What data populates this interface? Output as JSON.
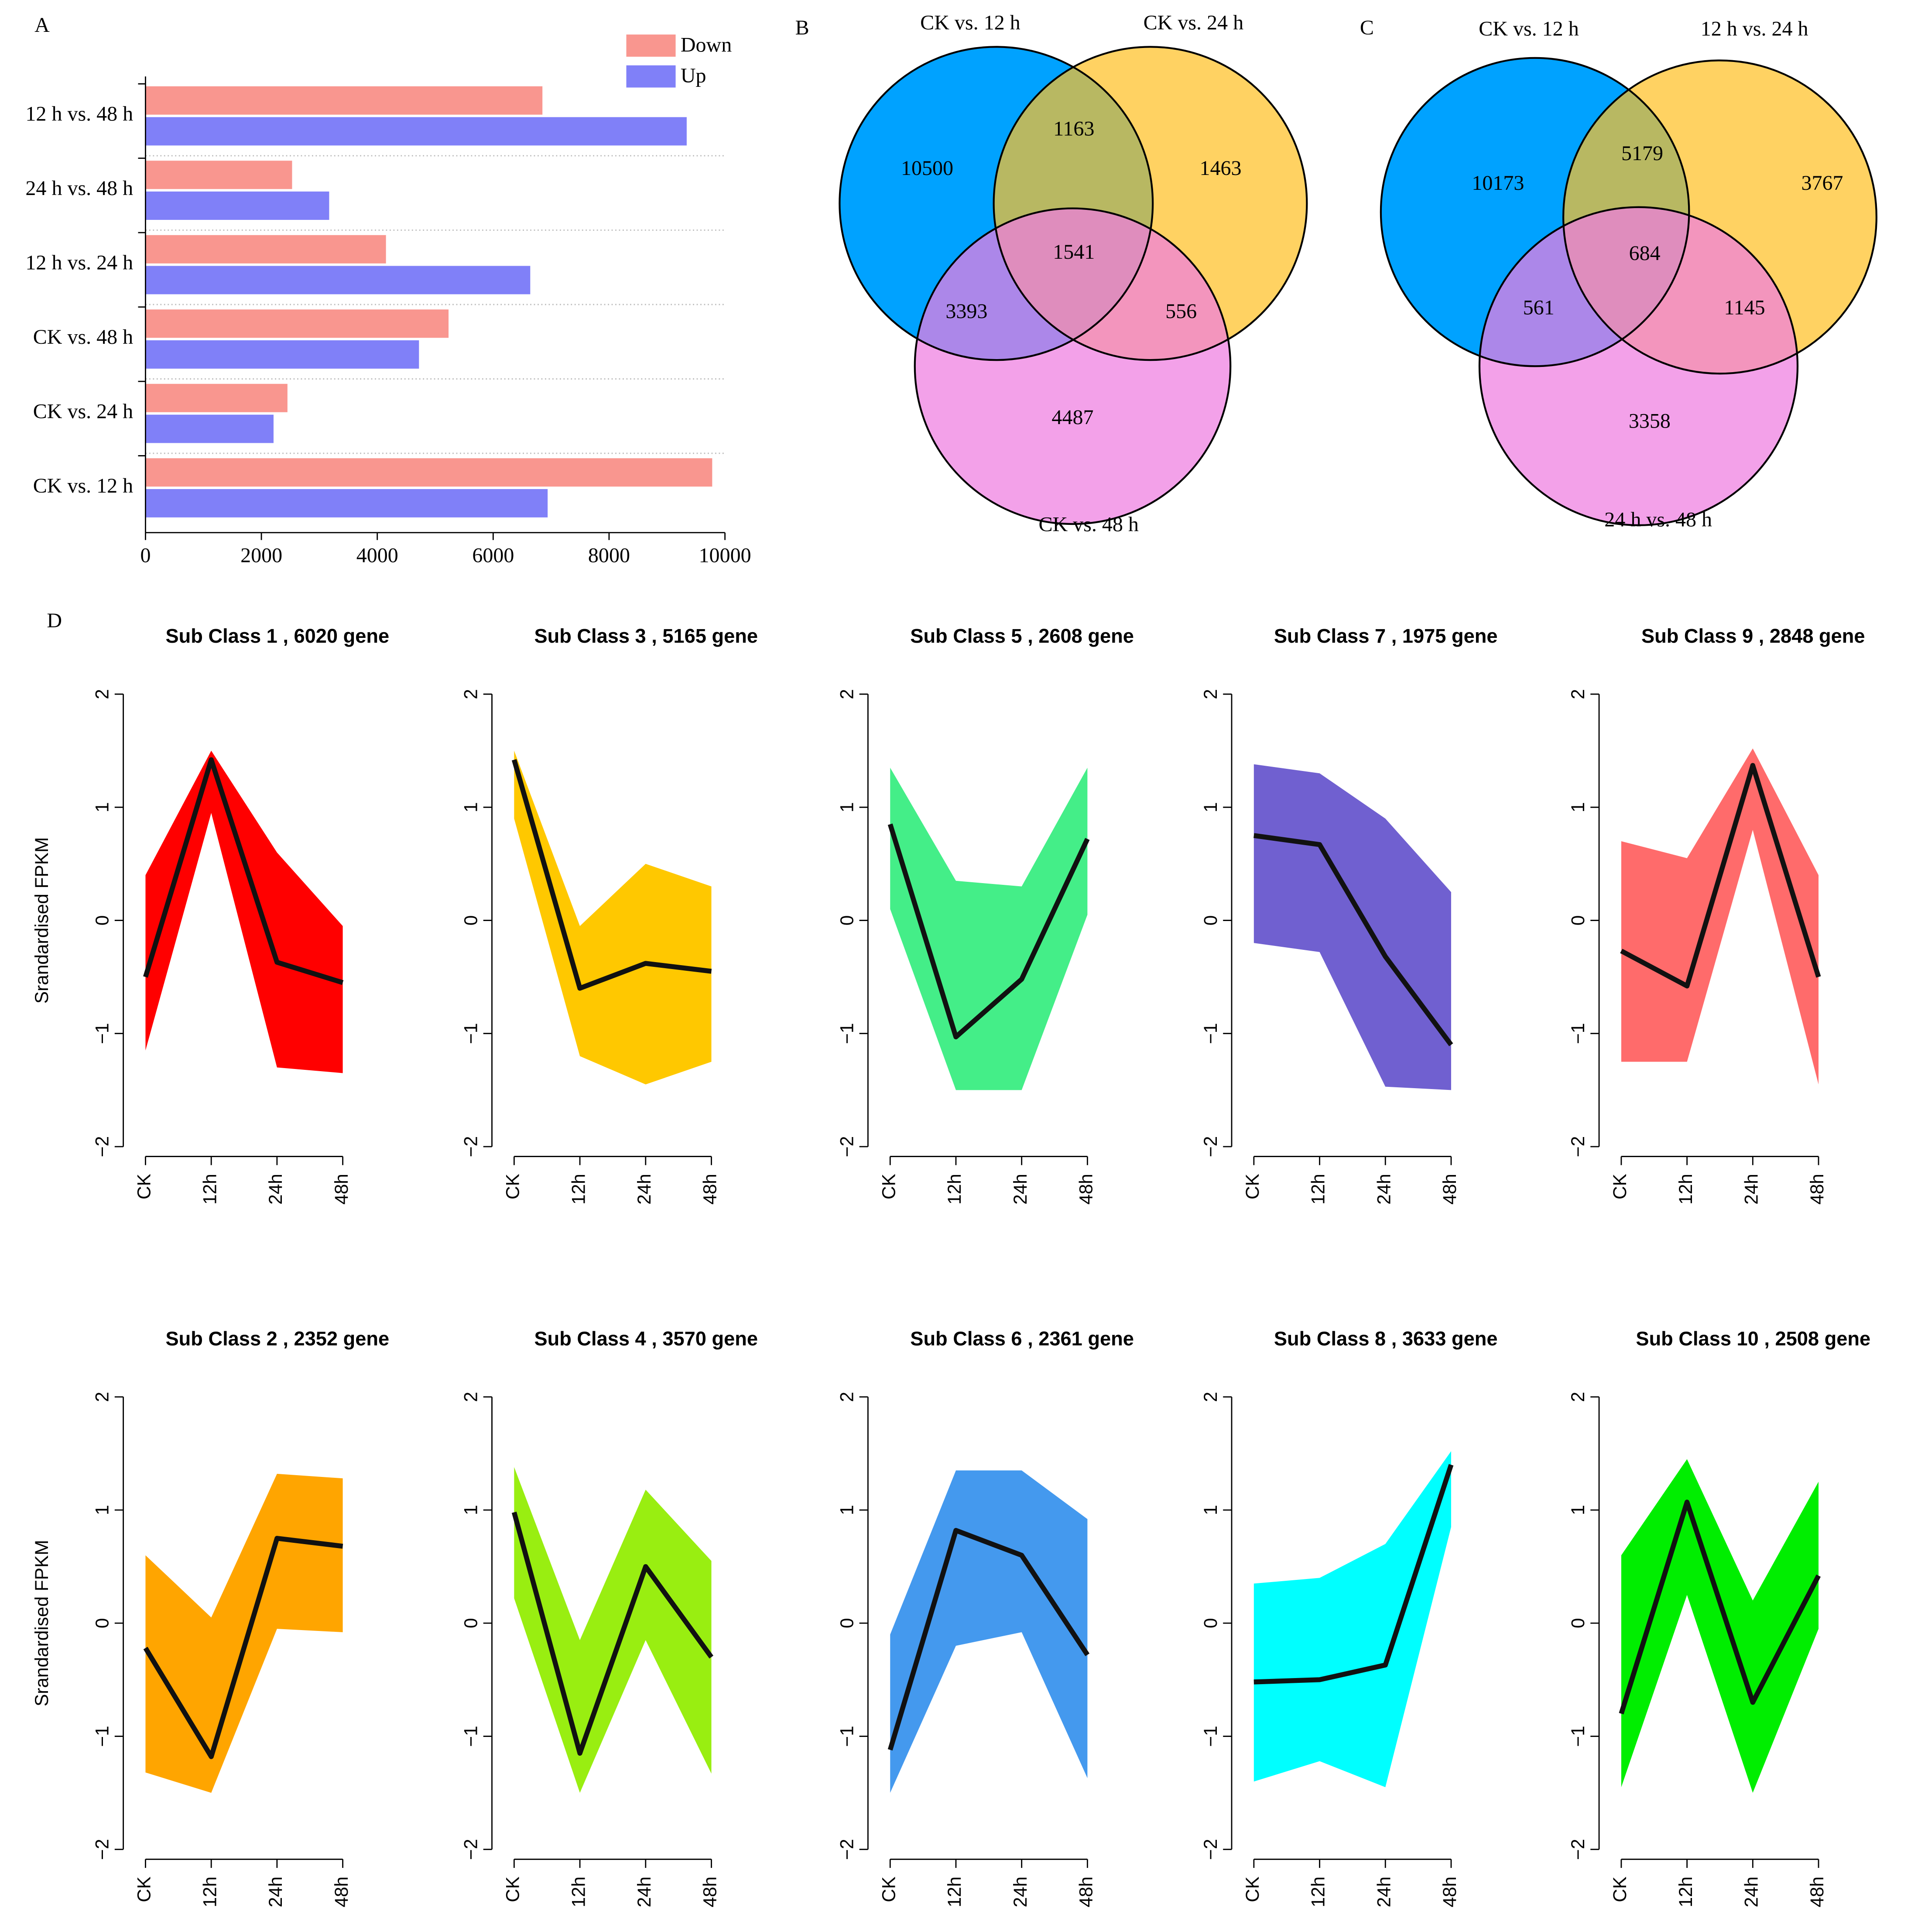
{
  "chart_data": [
    {
      "type": "hbar",
      "panel": "A",
      "categories": [
        "12 h vs. 48 h",
        "24 h vs. 48 h",
        "12 h vs. 24 h",
        "CK vs. 48 h",
        "CK vs. 24 h",
        "CK vs. 12 h"
      ],
      "series": [
        {
          "name": "Down",
          "color": "#f9968f",
          "values": [
            6850,
            2530,
            4150,
            5230,
            2450,
            9780
          ]
        },
        {
          "name": "Up",
          "color": "#8080f8",
          "values": [
            9340,
            3170,
            6640,
            4720,
            2210,
            6940
          ]
        }
      ],
      "xlim": [
        0,
        10000
      ],
      "xticks": [
        0,
        2000,
        4000,
        6000,
        8000,
        10000
      ]
    },
    {
      "type": "venn",
      "panel": "B",
      "sets": [
        {
          "name": "CK vs. 12 h",
          "color": "#00a2ff"
        },
        {
          "name": "CK vs. 24 h",
          "color": "#ffc125"
        },
        {
          "name": "CK vs. 48 h",
          "color": "#ee7de0"
        }
      ],
      "regions": [
        10500,
        1163,
        1463,
        1541,
        3393,
        556,
        4487
      ]
    },
    {
      "type": "venn",
      "panel": "C",
      "sets": [
        {
          "name": "CK vs. 12 h",
          "color": "#00a2ff"
        },
        {
          "name": "12 h vs. 24 h",
          "color": "#ffc125"
        },
        {
          "name": "24 h vs. 48 h",
          "color": "#ee7de0"
        }
      ],
      "regions": [
        10173,
        5179,
        3767,
        684,
        561,
        1145,
        3358
      ]
    },
    {
      "type": "band",
      "panel": "D",
      "title": "Sub Class 1 , 6020 gene",
      "ylabel": "Srandardised FPKM",
      "color": "#ff0000",
      "categories": [
        "CK",
        "12h",
        "24h",
        "48h"
      ],
      "values": [
        -0.5,
        1.42,
        -0.37,
        -0.55
      ],
      "upper": [
        0.4,
        1.5,
        0.6,
        -0.05
      ],
      "lower": [
        -1.15,
        0.95,
        -1.3,
        -1.35
      ],
      "ylim": [
        -2,
        2
      ],
      "yticks": [
        {
          "value": -2,
          "label": "−2"
        },
        {
          "value": -1,
          "label": "−1"
        },
        0,
        1,
        2
      ]
    },
    {
      "type": "band",
      "title": "Sub Class 3 , 5165 gene",
      "color": "#ffc800",
      "categories": [
        "CK",
        "12h",
        "24h",
        "48h"
      ],
      "values": [
        1.42,
        -0.6,
        -0.38,
        -0.45
      ],
      "upper": [
        1.5,
        -0.05,
        0.5,
        0.3
      ],
      "lower": [
        0.9,
        -1.2,
        -1.45,
        -1.25
      ],
      "ylim": [
        -2,
        2
      ],
      "yticks": [
        {
          "value": -2,
          "label": "−2"
        },
        {
          "value": -1,
          "label": "−1"
        },
        0,
        1,
        2
      ]
    },
    {
      "type": "band",
      "title": "Sub Class 5 , 2608 gene",
      "color": "#44ee88",
      "categories": [
        "CK",
        "12h",
        "24h",
        "48h"
      ],
      "values": [
        0.85,
        -1.03,
        -0.52,
        0.72
      ],
      "upper": [
        1.35,
        0.35,
        0.3,
        1.35
      ],
      "lower": [
        0.1,
        -1.5,
        -1.5,
        0.05
      ],
      "ylim": [
        -2,
        2
      ],
      "yticks": [
        {
          "value": -2,
          "label": "−2"
        },
        {
          "value": -1,
          "label": "−1"
        },
        0,
        1,
        2
      ]
    },
    {
      "type": "band",
      "title": "Sub Class 7 , 1975 gene",
      "color": "#7060d0",
      "categories": [
        "CK",
        "12h",
        "24h",
        "48h"
      ],
      "values": [
        0.75,
        0.67,
        -0.32,
        -1.1
      ],
      "upper": [
        1.38,
        1.3,
        0.9,
        0.25
      ],
      "lower": [
        -0.2,
        -0.28,
        -1.47,
        -1.5
      ],
      "ylim": [
        -2,
        2
      ],
      "yticks": [
        {
          "value": -2,
          "label": "−2"
        },
        {
          "value": -1,
          "label": "−1"
        },
        0,
        1,
        2
      ]
    },
    {
      "type": "band",
      "title": "Sub Class 9 , 2848 gene",
      "color": "#ff6b6b",
      "categories": [
        "CK",
        "12h",
        "24h",
        "48h"
      ],
      "values": [
        -0.27,
        -0.58,
        1.37,
        -0.5
      ],
      "upper": [
        0.7,
        0.55,
        1.52,
        0.4
      ],
      "lower": [
        -1.25,
        -1.25,
        0.8,
        -1.45
      ],
      "ylim": [
        -2,
        2
      ],
      "yticks": [
        {
          "value": -2,
          "label": "−2"
        },
        {
          "value": -1,
          "label": "−1"
        },
        0,
        1,
        2
      ]
    },
    {
      "type": "band",
      "title": "Sub Class 2 , 2352 gene",
      "ylabel": "Srandardised FPKM",
      "color": "#ffa500",
      "categories": [
        "CK",
        "12h",
        "24h",
        "48h"
      ],
      "values": [
        -0.22,
        -1.18,
        0.75,
        0.68
      ],
      "upper": [
        0.6,
        0.05,
        1.32,
        1.28
      ],
      "lower": [
        -1.32,
        -1.5,
        -0.05,
        -0.08
      ],
      "ylim": [
        -2,
        2
      ],
      "yticks": [
        {
          "value": -2,
          "label": "−2"
        },
        {
          "value": -1,
          "label": "−1"
        },
        0,
        1,
        2
      ]
    },
    {
      "type": "band",
      "title": "Sub Class 4 , 3570 gene",
      "color": "#99ee11",
      "categories": [
        "CK",
        "12h",
        "24h",
        "48h"
      ],
      "values": [
        0.98,
        -1.15,
        0.5,
        -0.3
      ],
      "upper": [
        1.38,
        -0.15,
        1.18,
        0.55
      ],
      "lower": [
        0.22,
        -1.5,
        -0.15,
        -1.33
      ],
      "ylim": [
        -2,
        2
      ],
      "yticks": [
        {
          "value": -2,
          "label": "−2"
        },
        {
          "value": -1,
          "label": "−1"
        },
        0,
        1,
        2
      ]
    },
    {
      "type": "band",
      "title": "Sub Class 6 , 2361 gene",
      "color": "#4499ee",
      "categories": [
        "CK",
        "12h",
        "24h",
        "48h"
      ],
      "values": [
        -1.12,
        0.82,
        0.6,
        -0.28
      ],
      "upper": [
        -0.1,
        1.35,
        1.35,
        0.92
      ],
      "lower": [
        -1.5,
        -0.2,
        -0.08,
        -1.37
      ],
      "ylim": [
        -2,
        2
      ],
      "yticks": [
        {
          "value": -2,
          "label": "−2"
        },
        {
          "value": -1,
          "label": "−1"
        },
        0,
        1,
        2
      ]
    },
    {
      "type": "band",
      "title": "Sub Class 8 , 3633 gene",
      "color": "#00ffff",
      "categories": [
        "CK",
        "12h",
        "24h",
        "48h"
      ],
      "values": [
        -0.52,
        -0.5,
        -0.37,
        1.4
      ],
      "upper": [
        0.35,
        0.4,
        0.7,
        1.52
      ],
      "lower": [
        -1.4,
        -1.22,
        -1.45,
        0.85
      ],
      "ylim": [
        -2,
        2
      ],
      "yticks": [
        {
          "value": -2,
          "label": "−2"
        },
        {
          "value": -1,
          "label": "−1"
        },
        0,
        1,
        2
      ]
    },
    {
      "type": "band",
      "title": "Sub Class 10 , 2508 gene",
      "color": "#00ee00",
      "categories": [
        "CK",
        "12h",
        "24h",
        "48h"
      ],
      "values": [
        -0.8,
        1.07,
        -0.7,
        0.42
      ],
      "upper": [
        0.6,
        1.45,
        0.2,
        1.25
      ],
      "lower": [
        -1.45,
        0.25,
        -1.5,
        -0.05
      ],
      "ylim": [
        -2,
        2
      ],
      "yticks": [
        {
          "value": -2,
          "label": "−2"
        },
        {
          "value": -1,
          "label": "−1"
        },
        0,
        1,
        2
      ]
    }
  ]
}
